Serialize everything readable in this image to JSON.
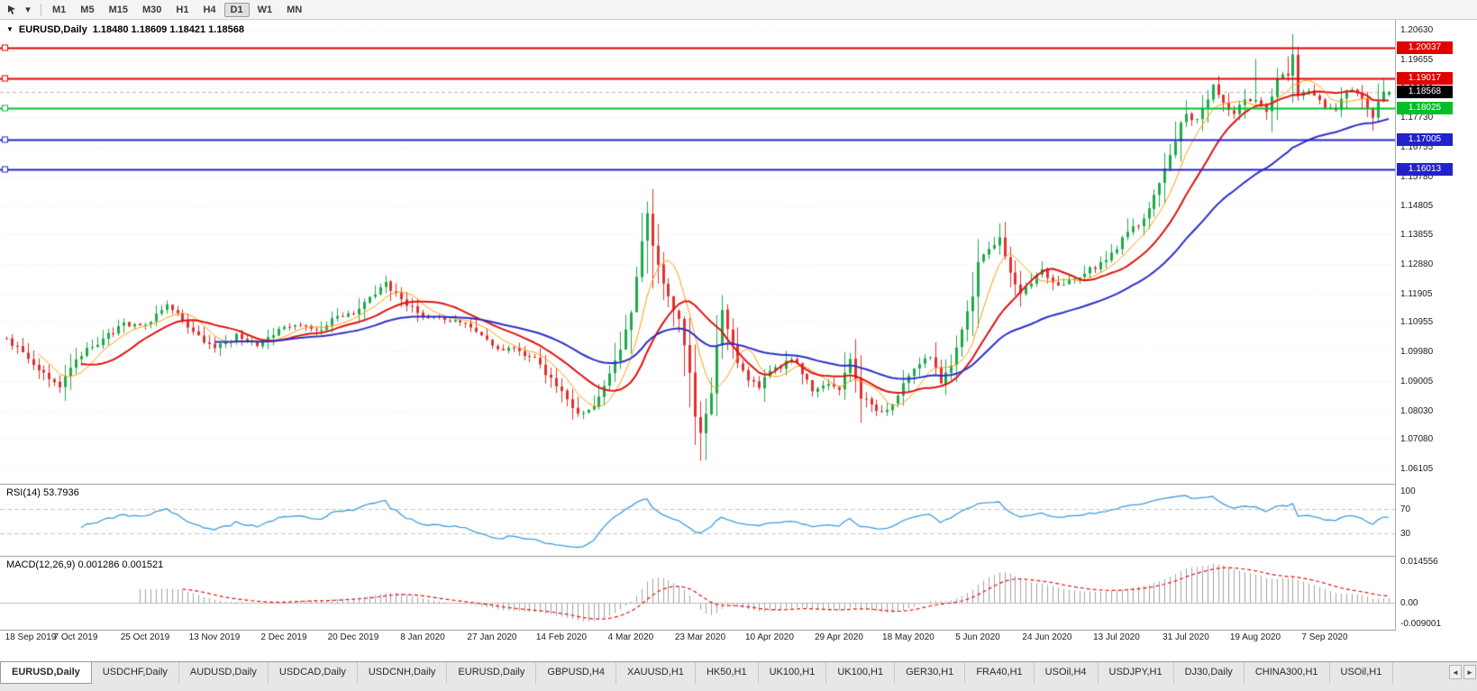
{
  "toolbar": {
    "dropdown_glyph": "▾",
    "icon_names": [
      "cursor-tool-icon",
      "dropdown-arrow-icon"
    ],
    "timeframes": [
      {
        "label": "M1",
        "active": false
      },
      {
        "label": "M5",
        "active": false
      },
      {
        "label": "M15",
        "active": false
      },
      {
        "label": "M30",
        "active": false
      },
      {
        "label": "H1",
        "active": false
      },
      {
        "label": "H4",
        "active": false
      },
      {
        "label": "D1",
        "active": true
      },
      {
        "label": "W1",
        "active": false
      },
      {
        "label": "MN",
        "active": false
      }
    ]
  },
  "chart": {
    "menu_arrow_glyph": "▼",
    "title_symbol": "EURUSD,Daily",
    "title_ohlc": "1.18480 1.18609 1.18421 1.18568"
  },
  "indicators": {
    "rsi_label": "RSI(14) 53.7936",
    "macd_label": "MACD(12,26,9) 0.001286 0.001521"
  },
  "chart_data": {
    "type": "candlestick",
    "symbol": "EURUSD",
    "period": "Daily",
    "bars": 260,
    "price_max": 1.2096,
    "price_min": 1.056,
    "price_ticks": [
      "1.20630",
      "1.19655",
      "1.18680",
      "1.17730",
      "1.16755",
      "1.15780",
      "1.14805",
      "1.13855",
      "1.12880",
      "1.11905",
      "1.10955",
      "1.09980",
      "1.09005",
      "1.08030",
      "1.07080",
      "1.06105"
    ],
    "date_labels": [
      "18 Sep 2019",
      "7 Oct 2019",
      "25 Oct 2019",
      "13 Nov 2019",
      "2 Dec 2019",
      "20 Dec 2019",
      "8 Jan 2020",
      "27 Jan 2020",
      "14 Feb 2020",
      "4 Mar 2020",
      "23 Mar 2020",
      "10 Apr 2020",
      "29 Apr 2020",
      "18 May 2020",
      "5 Jun 2020",
      "24 Jun 2020",
      "13 Jul 2020",
      "31 Jul 2020",
      "19 Aug 2020",
      "7 Sep 2020"
    ],
    "bars_per_label": 13,
    "levels": [
      {
        "price": 1.20037,
        "label": "1.20037",
        "color": "#e00000"
      },
      {
        "price": 1.19017,
        "label": "1.19017",
        "color": "#e00000"
      },
      {
        "price": 1.18025,
        "label": "1.18025",
        "color": "#00bf28"
      },
      {
        "price": 1.17005,
        "label": "1.17005",
        "color": "#2222cc"
      },
      {
        "price": 1.16013,
        "label": "1.16013",
        "color": "#2222cc"
      }
    ],
    "bid": {
      "price": 1.18568,
      "label": "1.18568",
      "color": "#000000"
    },
    "last_bar": {
      "o": 1.1848,
      "h": 1.18609,
      "l": 1.18421,
      "c": 1.18568
    },
    "candle_colors": {
      "up": "#1ea94a",
      "down": "#e03030"
    },
    "moving_averages": [
      {
        "type": "sma",
        "period": 7,
        "color": "#ff9d00",
        "width": 1
      },
      {
        "type": "sma",
        "period": 15,
        "color": "#e01212",
        "width": 2
      },
      {
        "type": "ema",
        "period": 40,
        "color": "#2d2dcc",
        "width": 2
      }
    ],
    "rsi": {
      "period": 14,
      "value": 53.7936,
      "levels": [
        100,
        70,
        30
      ],
      "color": "#3f9be0"
    },
    "macd": {
      "fast": 12,
      "slow": 26,
      "signal": 9,
      "values": [
        0.001286,
        0.001521
      ],
      "axis_labels": [
        "0.014556",
        "0.00",
        "-0.009001"
      ],
      "hist_color": "#a3a3a3",
      "signal_color": "#e01212"
    },
    "waypoints": [
      [
        0,
        1.104
      ],
      [
        4,
        1.0975
      ],
      [
        8,
        1.0905
      ],
      [
        10,
        1.0885
      ],
      [
        13,
        1.0975
      ],
      [
        18,
        1.104
      ],
      [
        22,
        1.1085
      ],
      [
        26,
        1.108
      ],
      [
        30,
        1.115
      ],
      [
        33,
        1.1105
      ],
      [
        36,
        1.1045
      ],
      [
        39,
        1.1005
      ],
      [
        43,
        1.105
      ],
      [
        47,
        1.1015
      ],
      [
        52,
        1.108
      ],
      [
        55,
        1.108
      ],
      [
        58,
        1.1065
      ],
      [
        62,
        1.112
      ],
      [
        65,
        1.112
      ],
      [
        68,
        1.1175
      ],
      [
        71,
        1.1225
      ],
      [
        74,
        1.117
      ],
      [
        78,
        1.111
      ],
      [
        82,
        1.1105
      ],
      [
        86,
        1.109
      ],
      [
        91,
        1.102
      ],
      [
        95,
        1.1
      ],
      [
        99,
        1.0975
      ],
      [
        102,
        1.0905
      ],
      [
        105,
        1.0835
      ],
      [
        107,
        1.079
      ],
      [
        109,
        1.08
      ],
      [
        111,
        1.085
      ],
      [
        113,
        1.092
      ],
      [
        115,
        1.101
      ],
      [
        117,
        1.113
      ],
      [
        119,
        1.1365
      ],
      [
        120,
        1.145
      ],
      [
        121,
        1.134
      ],
      [
        122,
        1.128
      ],
      [
        124,
        1.118
      ],
      [
        126,
        1.11
      ],
      [
        127,
        1.1015
      ],
      [
        128,
        1.092
      ],
      [
        129,
        1.079
      ],
      [
        130,
        1.072
      ],
      [
        131,
        1.079
      ],
      [
        132,
        1.086
      ],
      [
        133,
        1.101
      ],
      [
        134,
        1.114
      ],
      [
        135,
        1.108
      ],
      [
        137,
        1.096
      ],
      [
        139,
        1.09
      ],
      [
        141,
        1.088
      ],
      [
        143,
        1.0935
      ],
      [
        145,
        1.0945
      ],
      [
        147,
        1.098
      ],
      [
        149,
        1.0925
      ],
      [
        151,
        1.0875
      ],
      [
        153,
        1.089
      ],
      [
        156,
        1.087
      ],
      [
        158,
        1.0975
      ],
      [
        160,
        1.0845
      ],
      [
        162,
        1.082
      ],
      [
        164,
        1.08
      ],
      [
        166,
        1.0825
      ],
      [
        169,
        1.0915
      ],
      [
        171,
        1.096
      ],
      [
        173,
        1.0975
      ],
      [
        175,
        1.09
      ],
      [
        177,
        1.0955
      ],
      [
        179,
        1.1065
      ],
      [
        181,
        1.1185
      ],
      [
        182,
        1.129
      ],
      [
        184,
        1.134
      ],
      [
        186,
        1.137
      ],
      [
        188,
        1.1255
      ],
      [
        190,
        1.1185
      ],
      [
        192,
        1.123
      ],
      [
        194,
        1.1265
      ],
      [
        195,
        1.125
      ],
      [
        197,
        1.1215
      ],
      [
        199,
        1.123
      ],
      [
        201,
        1.124
      ],
      [
        203,
        1.127
      ],
      [
        205,
        1.1285
      ],
      [
        207,
        1.132
      ],
      [
        208,
        1.134
      ],
      [
        210,
        1.1395
      ],
      [
        212,
        1.142
      ],
      [
        214,
        1.147
      ],
      [
        216,
        1.156
      ],
      [
        218,
        1.165
      ],
      [
        220,
        1.175
      ],
      [
        221,
        1.178
      ],
      [
        223,
        1.176
      ],
      [
        225,
        1.183
      ],
      [
        226,
        1.188
      ],
      [
        228,
        1.182
      ],
      [
        230,
        1.178
      ],
      [
        232,
        1.184
      ],
      [
        234,
        1.183
      ],
      [
        236,
        1.179
      ],
      [
        238,
        1.19
      ],
      [
        240,
        1.192
      ],
      [
        241,
        1.199
      ],
      [
        242,
        1.185
      ],
      [
        244,
        1.186
      ],
      [
        246,
        1.183
      ],
      [
        247,
        1.181
      ],
      [
        249,
        1.1805
      ],
      [
        251,
        1.1855
      ],
      [
        253,
        1.186
      ],
      [
        255,
        1.18
      ],
      [
        256,
        1.177
      ],
      [
        257,
        1.183
      ],
      [
        258,
        1.1857
      ],
      [
        259,
        1.1857
      ]
    ],
    "spikes": [
      {
        "i": 10,
        "l": 1.0879
      },
      {
        "i": 120,
        "h": 1.1495
      },
      {
        "i": 130,
        "l": 1.0636
      },
      {
        "i": 186,
        "h": 1.1422
      },
      {
        "i": 234,
        "h": 1.1966
      },
      {
        "i": 240,
        "h": 1.1975
      },
      {
        "i": 241,
        "h": 1.2011
      },
      {
        "i": 256,
        "l": 1.1737
      }
    ]
  },
  "tab_bar": {
    "scroll_left_glyph": "◄",
    "scroll_right_glyph": "►",
    "tabs": [
      {
        "label": "EURUSD,Daily",
        "active": true
      },
      {
        "label": "USDCHF,Daily",
        "active": false
      },
      {
        "label": "AUDUSD,Daily",
        "active": false
      },
      {
        "label": "USDCAD,Daily",
        "active": false
      },
      {
        "label": "USDCNH,Daily",
        "active": false
      },
      {
        "label": "EURUSD,Daily",
        "active": false
      },
      {
        "label": "GBPUSD,H4",
        "active": false
      },
      {
        "label": "XAUUSD,H1",
        "active": false
      },
      {
        "label": "HK50,H1",
        "active": false
      },
      {
        "label": "UK100,H1",
        "active": false
      },
      {
        "label": "UK100,H1",
        "active": false
      },
      {
        "label": "GER30,H1",
        "active": false
      },
      {
        "label": "FRA40,H1",
        "active": false
      },
      {
        "label": "USOil,H4",
        "active": false
      },
      {
        "label": "USDJPY,H1",
        "active": false
      },
      {
        "label": "DJ30,Daily",
        "active": false
      },
      {
        "label": "CHINA300,H1",
        "active": false
      },
      {
        "label": "USOil,H1",
        "active": false
      }
    ]
  }
}
